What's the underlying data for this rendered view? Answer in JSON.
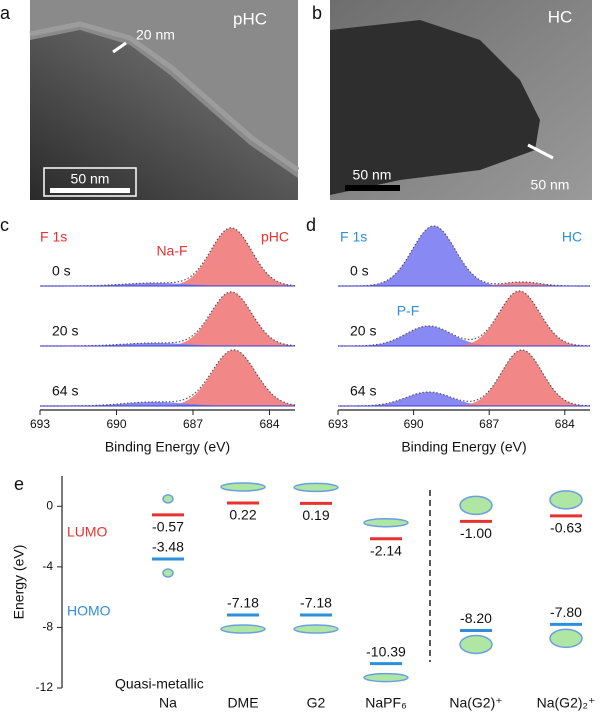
{
  "images": [
    {
      "panel": "a",
      "sample": "pHC",
      "scale_bar": "50 nm",
      "annotation": "20 nm"
    },
    {
      "panel": "b",
      "sample": "HC",
      "scale_bar": "50 nm",
      "annotation": "50 nm"
    }
  ],
  "chart_data": [
    {
      "type": "spectrum",
      "panel": "c",
      "title": "F 1s",
      "sample": "pHC",
      "label_color": "#e8322f",
      "peak_labels": [
        "Na-F"
      ],
      "xlabel": "Binding Energy (eV)",
      "xlim": [
        693,
        683
      ],
      "xticks": [
        693,
        690,
        687,
        684
      ],
      "traces": [
        {
          "name": "0 s",
          "peaks": [
            {
              "center": 685.5,
              "height": 58,
              "width": 0.8,
              "color": "#f07a7a"
            },
            {
              "center": 688.5,
              "height": 3,
              "width": 1.2,
              "color": "#7c7cf2"
            }
          ]
        },
        {
          "name": "20 s",
          "peaks": [
            {
              "center": 685.5,
              "height": 54,
              "width": 0.8,
              "color": "#f07a7a"
            },
            {
              "center": 688.5,
              "height": 3,
              "width": 1.2,
              "color": "#7c7cf2"
            }
          ]
        },
        {
          "name": "64 s",
          "peaks": [
            {
              "center": 685.4,
              "height": 56,
              "width": 0.85,
              "color": "#f07a7a"
            },
            {
              "center": 688.5,
              "height": 4,
              "width": 1.2,
              "color": "#7c7cf2"
            }
          ]
        }
      ]
    },
    {
      "type": "spectrum",
      "panel": "d",
      "title": "F 1s",
      "sample": "HC",
      "label_color": "#2f8ed8",
      "peak_labels": [
        "P-F"
      ],
      "xlabel": "Binding Energy (eV)",
      "xlim": [
        693,
        683
      ],
      "xticks": [
        693,
        690,
        687,
        684
      ],
      "traces": [
        {
          "name": "0 s",
          "peaks": [
            {
              "center": 689.2,
              "height": 60,
              "width": 0.85,
              "color": "#7c7cf2"
            },
            {
              "center": 685.7,
              "height": 4,
              "width": 0.7,
              "color": "#f07a7a"
            }
          ]
        },
        {
          "name": "20 s",
          "peaks": [
            {
              "center": 689.4,
              "height": 20,
              "width": 0.9,
              "color": "#7c7cf2"
            },
            {
              "center": 685.8,
              "height": 55,
              "width": 0.8,
              "color": "#f07a7a"
            }
          ]
        },
        {
          "name": "64 s",
          "peaks": [
            {
              "center": 689.4,
              "height": 14,
              "width": 0.9,
              "color": "#7c7cf2"
            },
            {
              "center": 685.7,
              "height": 56,
              "width": 0.8,
              "color": "#f07a7a"
            }
          ]
        }
      ]
    },
    {
      "type": "energy-levels",
      "panel": "e",
      "ylabel": "Energy (eV)",
      "ylim": [
        -12,
        2
      ],
      "yticks": [
        0,
        -4,
        -8,
        -12
      ],
      "annotation": "Quasi-metallic",
      "categories": [
        "Na",
        "DME",
        "G2",
        "NaPF₆",
        "Na(G2)⁺",
        "Na(G2)₂⁺"
      ],
      "series": [
        {
          "name": "LUMO",
          "color": "#e8322f",
          "values": [
            -0.57,
            0.22,
            0.19,
            -2.14,
            -1.0,
            -0.63
          ],
          "value_labels": [
            "-0.57",
            "0.22",
            "0.19",
            "-2.14",
            "-1.00",
            "-0.63"
          ]
        },
        {
          "name": "HOMO",
          "color": "#2f8ed8",
          "values": [
            -3.48,
            -7.18,
            -7.18,
            -10.39,
            -8.2,
            -7.8
          ],
          "value_labels": [
            "-3.48",
            "-7.18",
            "-7.18",
            "-10.39",
            "-8.20",
            "-7.80"
          ]
        }
      ]
    }
  ]
}
